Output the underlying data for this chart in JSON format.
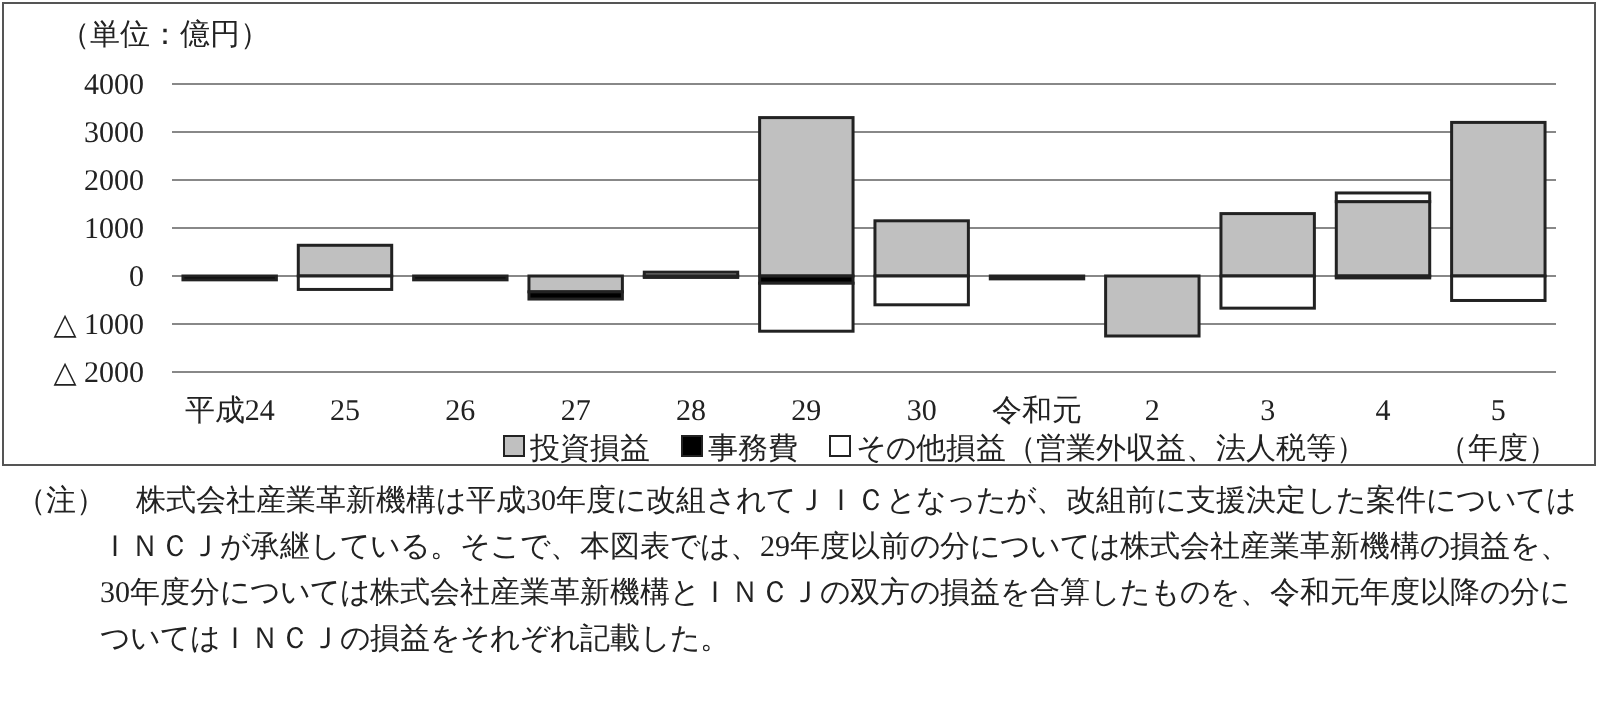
{
  "chart_data": {
    "type": "bar",
    "stacked": true,
    "ylabel": "（単位：億円）",
    "xlabel": "（年度）",
    "categories": [
      "平成24",
      "25",
      "26",
      "27",
      "28",
      "29",
      "30",
      "令和元",
      "2",
      "3",
      "4",
      "5"
    ],
    "series": [
      {
        "name": "投資損益",
        "color": "#c0c0c0",
        "values": [
          null,
          640,
          null,
          -330,
          80,
          3300,
          1150,
          null,
          -1250,
          1300,
          1550,
          3200
        ]
      },
      {
        "name": "事務費",
        "color": "#000000",
        "values": [
          -80,
          null,
          -80,
          -150,
          -30,
          -150,
          null,
          -60,
          null,
          null,
          -40,
          null
        ]
      },
      {
        "name": "その他損益（営業外収益、法人税等）",
        "color": "#ffffff",
        "values": [
          null,
          -280,
          null,
          null,
          null,
          -1000,
          -600,
          null,
          null,
          -670,
          180,
          -510
        ]
      }
    ],
    "ylim": [
      -2000,
      4000
    ],
    "yticks": [
      4000,
      3000,
      2000,
      1000,
      0,
      {
        "value": -1000,
        "label": "△ 1000"
      },
      {
        "value": -2000,
        "label": "△ 2000"
      }
    ],
    "grid": "y",
    "legend": "bottom",
    "annotations": [
      "（注）　株式会社産業革新機構は平成30年度に改組されてＪＩＣとなったが、改組前に支援決定した案件についてはＩＮＣＪが承継している。そこで、本図表では、29年度以前の分については株式会社産業革新機構の損益を、30年度分については株式会社産業革新機構とＩＮＣＪの双方の損益を合算したものを、令和元年度以降の分についてはＩＮＣＪの損益をそれぞれ記載した。"
    ]
  }
}
